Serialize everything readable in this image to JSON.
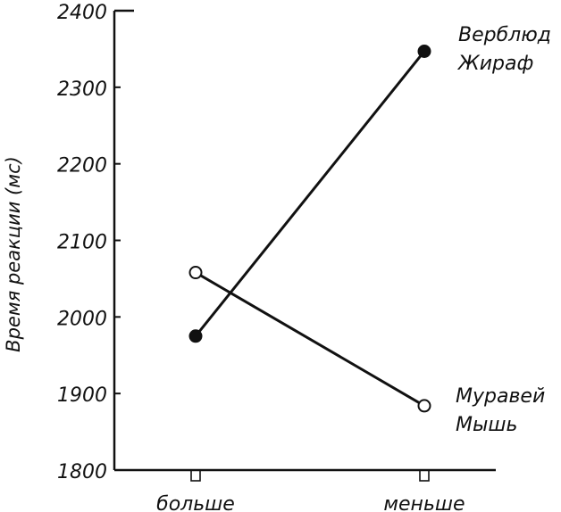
{
  "chart_data": {
    "type": "line",
    "ylabel": "Время реакции (мс)",
    "xlabel": "",
    "categories": [
      "больше",
      "меньше"
    ],
    "ylim": [
      1800,
      2400
    ],
    "yticks": [
      1800,
      1900,
      2000,
      2100,
      2200,
      2300,
      2400
    ],
    "grid": false,
    "series": [
      {
        "label_lines": [
          "Верблюд",
          "Жираф"
        ],
        "values": [
          1975,
          2347
        ],
        "marker": "filled-circle",
        "color": "#111111"
      },
      {
        "label_lines": [
          "Муравей",
          "Мышь"
        ],
        "values": [
          2058,
          1884
        ],
        "marker": "open-circle",
        "color": "#111111"
      }
    ]
  }
}
